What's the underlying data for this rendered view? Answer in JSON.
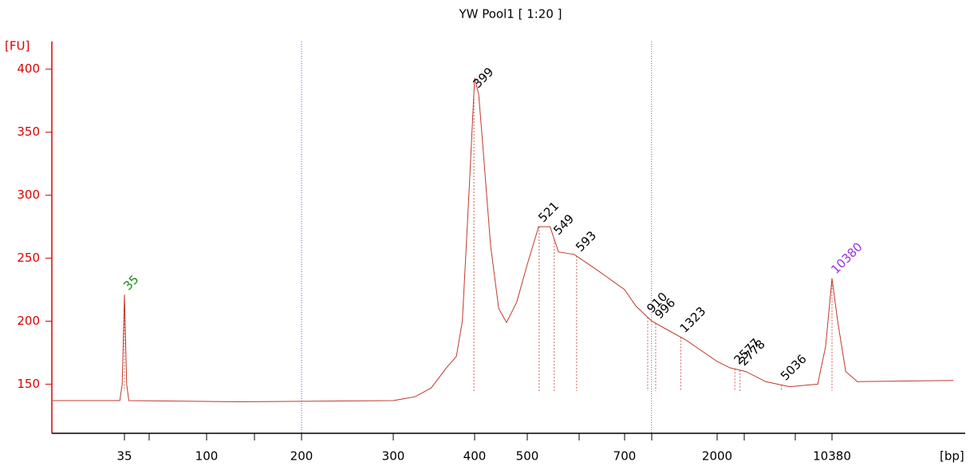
{
  "chart_data": {
    "type": "line",
    "title": "YW Pool1  [ 1:20 ]",
    "y_label": "[FU]",
    "x_label": "[bp]",
    "series": [
      {
        "color": "#c0392b",
        "x": [
          14,
          33,
          34,
          35,
          36,
          37,
          127,
          300,
          324,
          343,
          362,
          375,
          383,
          392,
          400,
          407,
          414,
          428,
          443,
          458,
          478,
          500,
          520,
          541,
          557,
          588,
          639,
          700,
          795,
          953,
          1141,
          1405,
          2000,
          2402,
          3020,
          4020,
          5665,
          8458,
          9470,
          10380,
          11260,
          12630,
          14930,
          59150
        ],
        "values": [
          137,
          137,
          150,
          221,
          150,
          137,
          136,
          137,
          140,
          147,
          163,
          172,
          200,
          300,
          393,
          380,
          340,
          260,
          210,
          199,
          215,
          245,
          275,
          275,
          255,
          253,
          240,
          225,
          212,
          200,
          193,
          185,
          168,
          163,
          160,
          152,
          148,
          150,
          180,
          234,
          200,
          160,
          152,
          153
        ]
      }
    ],
    "peaks": {
      "x": [
        35,
        399,
        521,
        549,
        593,
        910,
        996,
        1323,
        2577,
        2778,
        5036,
        10380
      ],
      "colors": [
        "#1a8a1a",
        "#000000",
        "#000000",
        "#000000",
        "#000000",
        "#000000",
        "#000000",
        "#000000",
        "#000000",
        "#000000",
        "#000000",
        "#9b30e0"
      ]
    },
    "region_lines": [
      200,
      950
    ],
    "xlim": [
      14,
      59150
    ],
    "ylim": [
      111,
      422
    ],
    "xticks": [
      35,
      100,
      200,
      300,
      400,
      500,
      700,
      2000,
      10380
    ],
    "yticks": [
      150,
      200,
      250,
      300,
      350,
      400
    ]
  }
}
